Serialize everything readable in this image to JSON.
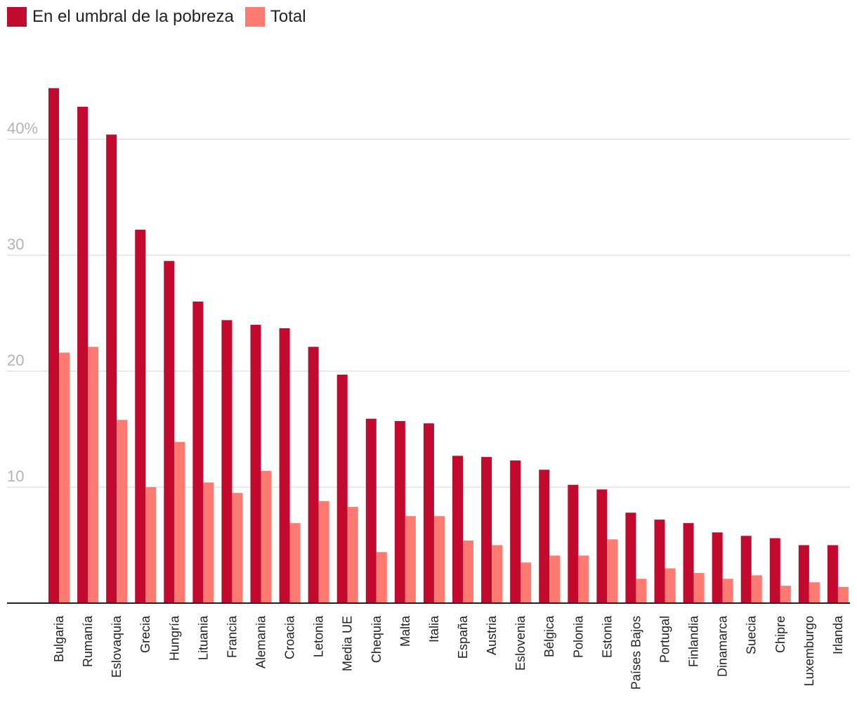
{
  "chart_data": {
    "type": "bar",
    "legend_position": "top-left",
    "grid": true,
    "ylim": [
      0,
      45
    ],
    "yticks": [
      {
        "value": 10,
        "label": "10"
      },
      {
        "value": 20,
        "label": "20"
      },
      {
        "value": 30,
        "label": "30"
      },
      {
        "value": 40,
        "label": "40%"
      }
    ],
    "categories": [
      "Bulgaria",
      "Rumanía",
      "Eslovaquia",
      "Grecia",
      "Hungría",
      "Lituania",
      "Francia",
      "Alemania",
      "Croacia",
      "Letonia",
      "Media UE",
      "Chequia",
      "Malta",
      "Italia",
      "España",
      "Austria",
      "Eslovenia",
      "Bélgica",
      "Polonia",
      "Estonia",
      "Países Bajos",
      "Portugal",
      "Finlandia",
      "Dinamarca",
      "Suecia",
      "Chipre",
      "Luxemburgo",
      "Irlanda"
    ],
    "series": [
      {
        "name": "En el umbral de la pobreza",
        "color": "#c10a2e",
        "values": [
          44.4,
          42.8,
          40.4,
          32.2,
          29.5,
          26.0,
          24.4,
          24.0,
          23.7,
          22.1,
          19.7,
          15.9,
          15.7,
          15.5,
          12.7,
          12.6,
          12.3,
          11.5,
          10.2,
          9.8,
          7.8,
          7.2,
          6.9,
          6.1,
          5.8,
          5.6,
          5.0,
          5.0
        ]
      },
      {
        "name": "Total",
        "color": "#ff7a70",
        "values": [
          21.6,
          22.1,
          15.8,
          10.0,
          13.9,
          10.4,
          9.5,
          11.4,
          6.9,
          8.8,
          8.3,
          4.4,
          7.5,
          7.5,
          5.4,
          5.0,
          3.5,
          4.1,
          4.1,
          5.5,
          2.1,
          3.0,
          2.6,
          2.1,
          2.4,
          1.5,
          1.8,
          1.4
        ]
      }
    ]
  }
}
